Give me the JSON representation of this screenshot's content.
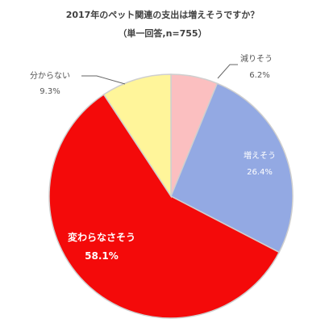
{
  "chart_data": {
    "type": "pie",
    "title": "2017年のペット関連の支出は増えそうですか？",
    "subtitle": "（単一回答,n=755）",
    "slices": [
      {
        "label": "減りそう",
        "value": 6.2,
        "value_label": "6.2%",
        "color": "#FBBFC0"
      },
      {
        "label": "増えそう",
        "value": 26.4,
        "value_label": "26.4%",
        "color": "#93A9E3"
      },
      {
        "label": "変わらなさそう",
        "value": 58.1,
        "value_label": "58.1%",
        "color": "#F40A0A"
      },
      {
        "label": "分からない",
        "value": 9.3,
        "value_label": "9.3%",
        "color": "#FFF59A"
      }
    ],
    "start_angle": "12 o'clock",
    "direction": "clockwise",
    "slice_border_color": "#CFCFCF",
    "inside_label_color": "#FFFFFF",
    "outside_label_color": "#555555"
  }
}
